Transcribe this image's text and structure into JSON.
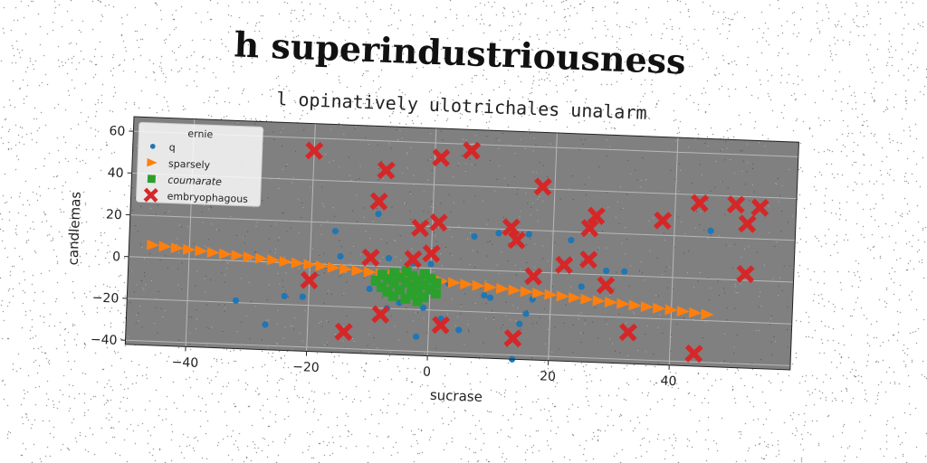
{
  "chart_data": {
    "type": "scatter",
    "title": "h superindustriousness",
    "subtitle": "l opinatively ulotrichales unalarm",
    "xlabel": "sucrase",
    "ylabel": "candlemas",
    "xlim": [
      -50,
      60
    ],
    "ylim": [
      -42,
      67
    ],
    "xticks": [
      -40,
      -20,
      0,
      20,
      40
    ],
    "yticks": [
      -40,
      -20,
      0,
      20,
      40,
      60
    ],
    "grid": true,
    "legend": {
      "title": "ernie",
      "placement": "top-left"
    },
    "colors": {
      "q": "#1f77b4",
      "sparsely": "#ff7f0e",
      "coumarate": "#2ca02c",
      "embryophagous": "#d62728",
      "plot_background": "#808080"
    },
    "series": [
      {
        "name": "q",
        "marker": "circle",
        "points": [
          [
            -32,
            -19
          ],
          [
            -27,
            -30
          ],
          [
            -24,
            -16
          ],
          [
            -21,
            -16
          ],
          [
            -16,
            16
          ],
          [
            -15,
            4
          ],
          [
            -10,
            -11
          ],
          [
            -9,
            25
          ],
          [
            -7,
            -20
          ],
          [
            -7,
            4
          ],
          [
            -5,
            -17
          ],
          [
            -4,
            -8
          ],
          [
            -2,
            -33
          ],
          [
            -1,
            -19
          ],
          [
            0,
            2
          ],
          [
            2,
            -24
          ],
          [
            3,
            -7
          ],
          [
            5,
            -29
          ],
          [
            7,
            16
          ],
          [
            9,
            -12
          ],
          [
            10,
            -13
          ],
          [
            11,
            18
          ],
          [
            14,
            -42
          ],
          [
            15,
            -25
          ],
          [
            16,
            -20
          ],
          [
            16,
            18
          ],
          [
            17,
            -13
          ],
          [
            23,
            16
          ],
          [
            25,
            -6
          ],
          [
            29,
            2
          ],
          [
            32,
            2
          ],
          [
            46,
            23
          ],
          [
            -3,
            2
          ],
          [
            0,
            -11
          ]
        ]
      },
      {
        "name": "sparsely",
        "marker": "triangle-right",
        "points": [
          [
            -46,
            6
          ],
          [
            -44,
            5.5
          ],
          [
            -42,
            5
          ],
          [
            -40,
            4.5
          ],
          [
            -38,
            4
          ],
          [
            -36,
            3.5
          ],
          [
            -34,
            3
          ],
          [
            -32,
            2.5
          ],
          [
            -30,
            2
          ],
          [
            -28,
            1.5
          ],
          [
            -26,
            1
          ],
          [
            -24,
            0.5
          ],
          [
            -22,
            0
          ],
          [
            -20,
            -0.5
          ],
          [
            -18,
            -1
          ],
          [
            -16,
            -1.5
          ],
          [
            -14,
            -2
          ],
          [
            -12,
            -2.5
          ],
          [
            -10,
            -3
          ],
          [
            -8,
            -3.5
          ],
          [
            -6,
            -4
          ],
          [
            -4,
            -4.5
          ],
          [
            -2,
            -5
          ],
          [
            0,
            -5.5
          ],
          [
            2,
            -6
          ],
          [
            4,
            -6.5
          ],
          [
            6,
            -7
          ],
          [
            8,
            -7.5
          ],
          [
            10,
            -8
          ],
          [
            12,
            -8.5
          ],
          [
            14,
            -9
          ],
          [
            16,
            -9.5
          ],
          [
            18,
            -10
          ],
          [
            20,
            -10.5
          ],
          [
            22,
            -11
          ],
          [
            24,
            -11.5
          ],
          [
            26,
            -12
          ],
          [
            28,
            -12.5
          ],
          [
            30,
            -13
          ],
          [
            32,
            -13.5
          ],
          [
            34,
            -14
          ],
          [
            36,
            -14.5
          ],
          [
            38,
            -15
          ],
          [
            40,
            -15.5
          ],
          [
            42,
            -16
          ],
          [
            44,
            -16.5
          ],
          [
            46,
            -17
          ]
        ]
      },
      {
        "name": "coumarate",
        "marker": "square",
        "points": [
          [
            -8,
            -4
          ],
          [
            -8,
            -10
          ],
          [
            -7,
            -6
          ],
          [
            -7,
            -12
          ],
          [
            -6,
            -3
          ],
          [
            -6,
            -8
          ],
          [
            -6,
            -14
          ],
          [
            -5,
            -5
          ],
          [
            -5,
            -11
          ],
          [
            -4,
            -2
          ],
          [
            -4,
            -7
          ],
          [
            -4,
            -15
          ],
          [
            -3,
            -4
          ],
          [
            -3,
            -9
          ],
          [
            -3,
            -13
          ],
          [
            -2,
            -6
          ],
          [
            -2,
            -11
          ],
          [
            -1,
            -3
          ],
          [
            -1,
            -8
          ],
          [
            -1,
            -14
          ],
          [
            0,
            -5
          ],
          [
            0,
            -10
          ],
          [
            1,
            -7
          ],
          [
            1,
            -12
          ],
          [
            -9,
            -7
          ],
          [
            -2,
            -16
          ]
        ]
      },
      {
        "name": "embryophagous",
        "marker": "x-filled",
        "points": [
          [
            -20,
            54
          ],
          [
            -8,
            46
          ],
          [
            -9,
            31
          ],
          [
            -20,
            -8
          ],
          [
            -14,
            -32
          ],
          [
            -10,
            4
          ],
          [
            -8,
            -23
          ],
          [
            -3,
            4
          ],
          [
            -2,
            19
          ],
          [
            0,
            7
          ],
          [
            1,
            22
          ],
          [
            1,
            53
          ],
          [
            2,
            -27
          ],
          [
            6,
            57
          ],
          [
            13,
            21
          ],
          [
            14,
            15
          ],
          [
            14,
            -32
          ],
          [
            17,
            -2
          ],
          [
            18,
            41
          ],
          [
            22,
            4
          ],
          [
            26,
            7
          ],
          [
            26,
            22
          ],
          [
            27,
            28
          ],
          [
            29,
            -5
          ],
          [
            33,
            -27
          ],
          [
            38,
            27
          ],
          [
            44,
            36
          ],
          [
            44,
            -36
          ],
          [
            50,
            36
          ],
          [
            52,
            27
          ],
          [
            52,
            3
          ],
          [
            54,
            35
          ]
        ]
      }
    ]
  }
}
